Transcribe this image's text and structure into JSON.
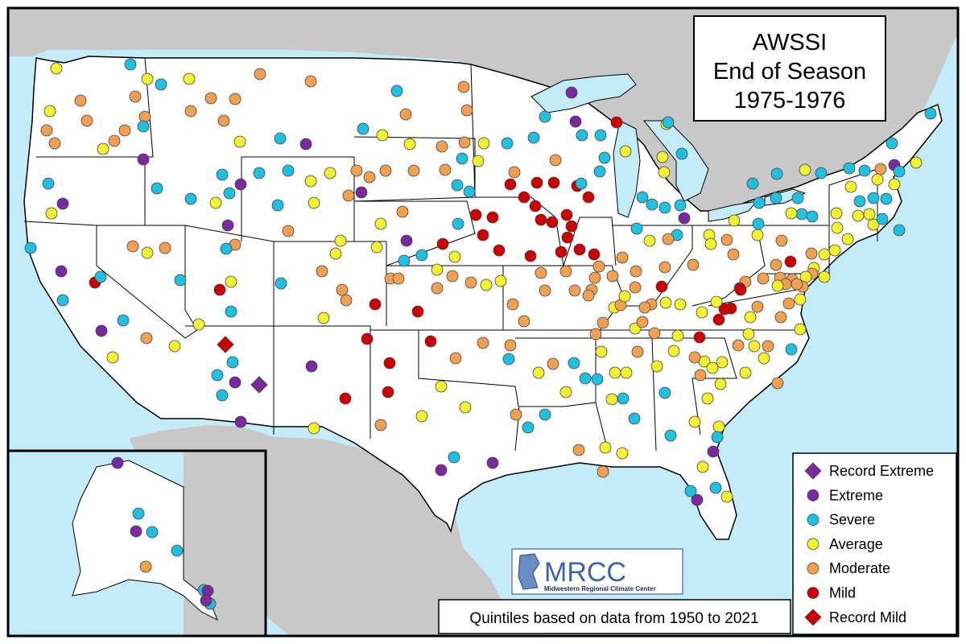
{
  "title": {
    "line1": "AWSSI",
    "line2": "End of Season",
    "line3": "1975-1976"
  },
  "logo": {
    "text": "MRCC",
    "subtitle": "Midwestern Regional Climate Center"
  },
  "footnote": "Quintiles based on data from 1950 to 2021",
  "colors": {
    "ocean": "#c4ecf8",
    "land_other": "#c8c8c8",
    "land_us": "#ffffff",
    "border": "#000000",
    "extreme": "#7a2a9e",
    "severe": "#20c0e0",
    "average": "#f2f230",
    "moderate": "#f0a050",
    "mild": "#cc0000"
  },
  "legend": [
    {
      "key": "record_extreme",
      "label": "Record Extreme",
      "shape": "diamond",
      "color": "#7a2a9e"
    },
    {
      "key": "extreme",
      "label": "Extreme",
      "shape": "circle",
      "color": "#7a2a9e"
    },
    {
      "key": "severe",
      "label": "Severe",
      "shape": "circle",
      "color": "#20c0e0"
    },
    {
      "key": "average",
      "label": "Average",
      "shape": "circle",
      "color": "#f2f230"
    },
    {
      "key": "moderate",
      "label": "Moderate",
      "shape": "circle",
      "color": "#f0a050"
    },
    {
      "key": "mild",
      "label": "Mild",
      "shape": "circle",
      "color": "#cc0000"
    },
    {
      "key": "record_mild",
      "label": "Record Mild",
      "shape": "diamond",
      "color": "#cc0000"
    }
  ]
}
